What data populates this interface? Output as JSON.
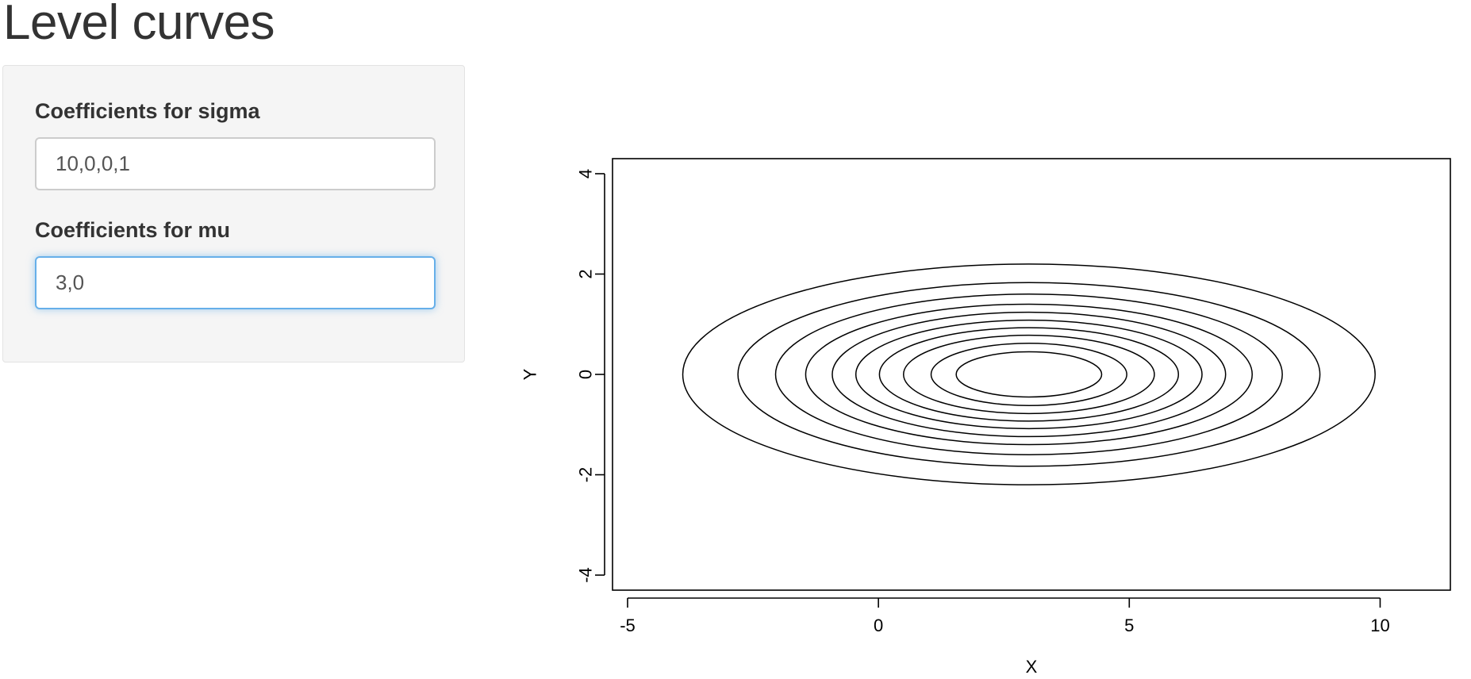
{
  "page": {
    "title": "Level curves"
  },
  "sidebar": {
    "sigma_label": "Coefficients for sigma",
    "sigma_value": "10,0,0,1",
    "mu_label": "Coefficients for mu",
    "mu_value": "3,0"
  },
  "chart_data": {
    "type": "contour",
    "xlabel": "X",
    "ylabel": "Y",
    "xlim": [
      -5.3,
      11.4
    ],
    "ylim": [
      -4.3,
      4.3
    ],
    "x_ticks": [
      -5,
      0,
      5,
      10
    ],
    "y_ticks": [
      -4,
      -2,
      0,
      2,
      4
    ],
    "center": [
      3,
      0
    ],
    "levels": [
      {
        "x_semi_axis": 6.9,
        "y_semi_axis": 2.2
      },
      {
        "x_semi_axis": 5.8,
        "y_semi_axis": 1.83
      },
      {
        "x_semi_axis": 5.05,
        "y_semi_axis": 1.6
      },
      {
        "x_semi_axis": 4.45,
        "y_semi_axis": 1.4
      },
      {
        "x_semi_axis": 3.92,
        "y_semi_axis": 1.24
      },
      {
        "x_semi_axis": 3.45,
        "y_semi_axis": 1.08
      },
      {
        "x_semi_axis": 2.98,
        "y_semi_axis": 0.93
      },
      {
        "x_semi_axis": 2.5,
        "y_semi_axis": 0.78
      },
      {
        "x_semi_axis": 1.95,
        "y_semi_axis": 0.62
      },
      {
        "x_semi_axis": 1.45,
        "y_semi_axis": 0.45
      }
    ],
    "line_color": "#000000",
    "grid": false
  }
}
